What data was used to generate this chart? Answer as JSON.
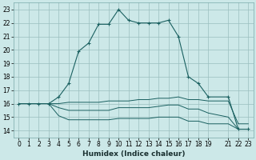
{
  "xlabel": "Humidex (Indice chaleur)",
  "bg_color": "#cce8e8",
  "grid_color": "#9bbfbf",
  "line_color": "#1a6060",
  "xtick_vals": [
    0,
    1,
    2,
    3,
    4,
    5,
    6,
    7,
    8,
    9,
    10,
    11,
    12,
    13,
    14,
    15,
    16,
    17,
    18,
    19,
    21,
    22,
    23
  ],
  "ytick_vals": [
    14,
    15,
    16,
    17,
    18,
    19,
    20,
    21,
    22,
    23
  ],
  "xlim": [
    -0.5,
    23.5
  ],
  "ylim": [
    13.5,
    23.5
  ],
  "line_main_x": [
    0,
    1,
    2,
    3,
    4,
    5,
    6,
    7,
    8,
    9,
    10,
    11,
    12,
    13,
    14,
    15,
    16,
    17,
    18,
    19,
    21,
    22,
    23
  ],
  "line_main_y": [
    16,
    16,
    16,
    16,
    16.5,
    17.5,
    19.9,
    20.5,
    21.9,
    21.9,
    23.0,
    22.2,
    22.0,
    22.0,
    22.0,
    22.2,
    21.0,
    18.0,
    17.5,
    16.5,
    16.5,
    14.1,
    14.1
  ],
  "line_low_x": [
    0,
    1,
    2,
    3,
    4,
    5,
    6,
    7,
    8,
    9,
    10,
    11,
    12,
    13,
    14,
    15,
    16,
    17,
    18,
    19,
    21,
    22,
    23
  ],
  "line_low_y": [
    16,
    16,
    16,
    16,
    15.1,
    14.8,
    14.8,
    14.8,
    14.8,
    14.8,
    14.9,
    14.9,
    14.9,
    14.9,
    15.0,
    15.0,
    15.0,
    14.7,
    14.7,
    14.5,
    14.5,
    14.1,
    14.1
  ],
  "line_mid_x": [
    0,
    1,
    2,
    3,
    4,
    5,
    6,
    7,
    8,
    9,
    10,
    11,
    12,
    13,
    14,
    15,
    16,
    17,
    18,
    19,
    21,
    22,
    23
  ],
  "line_mid_y": [
    16,
    16,
    16,
    16,
    15.7,
    15.5,
    15.5,
    15.5,
    15.5,
    15.5,
    15.7,
    15.7,
    15.7,
    15.7,
    15.8,
    15.9,
    15.9,
    15.6,
    15.6,
    15.3,
    15.0,
    14.1,
    14.1
  ],
  "line_up_x": [
    0,
    1,
    2,
    3,
    4,
    5,
    6,
    7,
    8,
    9,
    10,
    11,
    12,
    13,
    14,
    15,
    16,
    17,
    18,
    19,
    21,
    22,
    23
  ],
  "line_up_y": [
    16,
    16,
    16,
    16,
    16.0,
    16.1,
    16.1,
    16.1,
    16.1,
    16.2,
    16.2,
    16.2,
    16.3,
    16.3,
    16.4,
    16.4,
    16.5,
    16.3,
    16.3,
    16.2,
    16.2,
    14.5,
    14.5
  ],
  "tick_fontsize": 5.5,
  "xlabel_fontsize": 6.5
}
